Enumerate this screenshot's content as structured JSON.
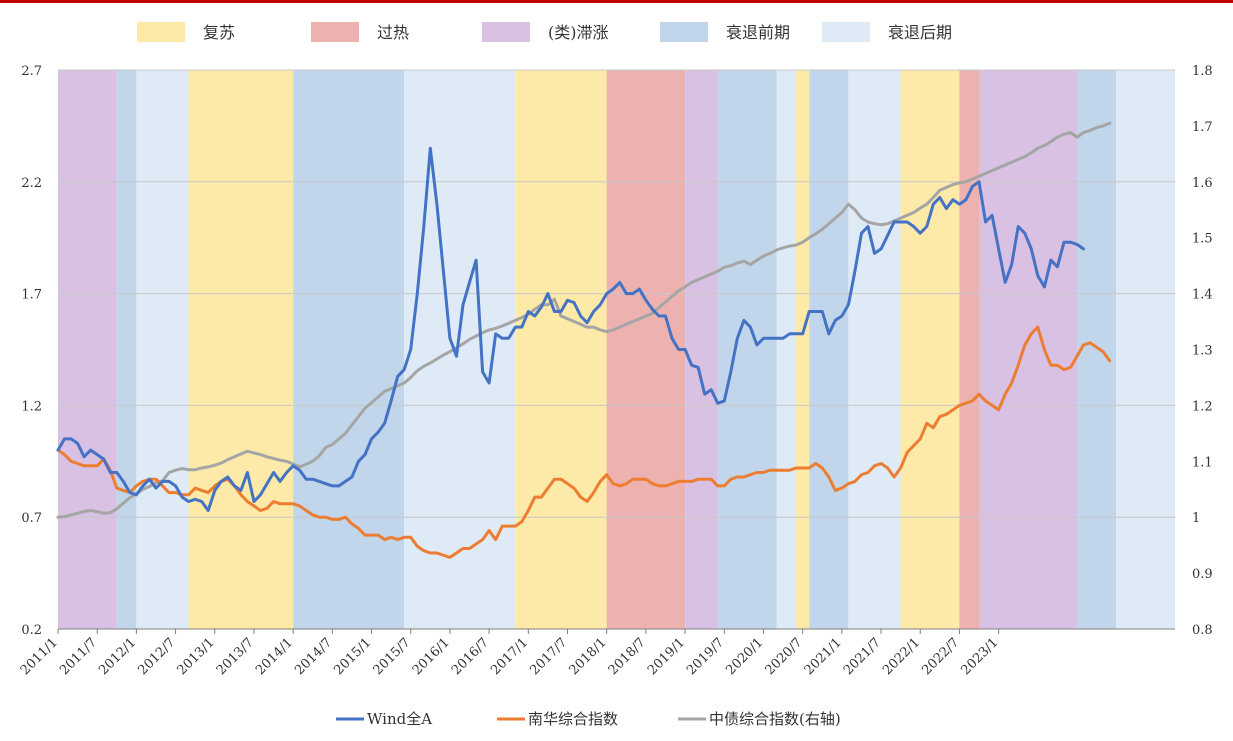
{
  "chart_data": {
    "type": "line",
    "phase_legend": [
      {
        "key": "recovery",
        "label": "复苏",
        "color": "#fde9a8"
      },
      {
        "key": "overheat",
        "label": "过热",
        "color": "#edb2b0"
      },
      {
        "key": "stagflation",
        "label": "(类)滞涨",
        "color": "#d9c1e3"
      },
      {
        "key": "early_recession",
        "label": "衰退前期",
        "color": "#c1d6ea"
      },
      {
        "key": "late_recession",
        "label": "衰退后期",
        "color": "#deebf7"
      }
    ],
    "phases": [
      {
        "phase": "stagflation",
        "start": "2011-01",
        "end": "2011-10"
      },
      {
        "phase": "early_recession",
        "start": "2011-10",
        "end": "2012-01"
      },
      {
        "phase": "late_recession",
        "start": "2012-01",
        "end": "2012-09"
      },
      {
        "phase": "recovery",
        "start": "2012-09",
        "end": "2014-01"
      },
      {
        "phase": "early_recession",
        "start": "2014-01",
        "end": "2015-06"
      },
      {
        "phase": "late_recession",
        "start": "2015-06",
        "end": "2016-11"
      },
      {
        "phase": "recovery",
        "start": "2016-11",
        "end": "2018-01"
      },
      {
        "phase": "overheat",
        "start": "2018-01",
        "end": "2019-01"
      },
      {
        "phase": "stagflation",
        "start": "2019-01",
        "end": "2019-06"
      },
      {
        "phase": "early_recession",
        "start": "2019-06",
        "end": "2020-03"
      },
      {
        "phase": "late_recession",
        "start": "2020-03",
        "end": "2020-06"
      },
      {
        "phase": "recovery",
        "start": "2020-06",
        "end": "2020-08"
      },
      {
        "phase": "early_recession",
        "start": "2020-08",
        "end": "2021-02"
      },
      {
        "phase": "late_recession",
        "start": "2021-02",
        "end": "2021-10"
      },
      {
        "phase": "recovery",
        "start": "2021-10",
        "end": "2022-07"
      },
      {
        "phase": "overheat",
        "start": "2022-07",
        "end": "2022-10"
      },
      {
        "phase": "stagflation",
        "start": "2022-10",
        "end": "2024-01"
      },
      {
        "phase": "early_recession",
        "start": "2024-01",
        "end": "2024-07"
      },
      {
        "phase": "late_recession",
        "start": "2024-07",
        "end": "2025-04"
      }
    ],
    "x_ticks": [
      "2011/1",
      "2011/7",
      "2012/1",
      "2012/7",
      "2013/1",
      "2013/7",
      "2014/1",
      "2014/7",
      "2015/1",
      "2015/7",
      "2016/1",
      "2016/7",
      "2017/1",
      "2017/7",
      "2018/1",
      "2018/7",
      "2019/1",
      "2019/7",
      "2020/1",
      "2020/7",
      "2021/1",
      "2021/7",
      "2022/1",
      "2022/7",
      "2023/1"
    ],
    "x_range": [
      "2011-01",
      "2025-04"
    ],
    "y_left": {
      "min": 0.2,
      "max": 2.7,
      "ticks": [
        "0.2",
        "0.7",
        "1.2",
        "1.7",
        "2.2",
        "2.7"
      ]
    },
    "y_right": {
      "min": 0.8,
      "max": 1.8,
      "ticks": [
        "0.8",
        "0.9",
        "1",
        "1.1",
        "1.2",
        "1.3",
        "1.4",
        "1.5",
        "1.6",
        "1.7",
        "1.8"
      ]
    },
    "series": [
      {
        "name": "Wind全A",
        "color": "#4472c4",
        "axis": "left",
        "start": "2011-01",
        "values": [
          1.0,
          1.05,
          1.05,
          1.03,
          0.97,
          1.0,
          0.98,
          0.96,
          0.9,
          0.9,
          0.86,
          0.81,
          0.8,
          0.84,
          0.87,
          0.83,
          0.86,
          0.86,
          0.84,
          0.79,
          0.77,
          0.78,
          0.77,
          0.73,
          0.82,
          0.86,
          0.88,
          0.84,
          0.82,
          0.9,
          0.77,
          0.8,
          0.85,
          0.9,
          0.86,
          0.9,
          0.93,
          0.91,
          0.87,
          0.87,
          0.86,
          0.85,
          0.84,
          0.84,
          0.86,
          0.88,
          0.95,
          0.98,
          1.05,
          1.08,
          1.12,
          1.22,
          1.33,
          1.36,
          1.45,
          1.7,
          2.0,
          2.35,
          2.1,
          1.8,
          1.5,
          1.42,
          1.65,
          1.75,
          1.85,
          1.35,
          1.3,
          1.52,
          1.5,
          1.5,
          1.55,
          1.55,
          1.62,
          1.6,
          1.64,
          1.7,
          1.62,
          1.62,
          1.67,
          1.66,
          1.6,
          1.57,
          1.62,
          1.65,
          1.7,
          1.72,
          1.75,
          1.7,
          1.7,
          1.72,
          1.67,
          1.63,
          1.6,
          1.6,
          1.5,
          1.45,
          1.45,
          1.38,
          1.37,
          1.25,
          1.27,
          1.21,
          1.22,
          1.35,
          1.5,
          1.58,
          1.55,
          1.47,
          1.5,
          1.5,
          1.5,
          1.5,
          1.52,
          1.52,
          1.52,
          1.62,
          1.62,
          1.62,
          1.52,
          1.58,
          1.6,
          1.65,
          1.8,
          1.97,
          2.0,
          1.88,
          1.9,
          1.96,
          2.02,
          2.02,
          2.02,
          2.0,
          1.97,
          2.0,
          2.1,
          2.13,
          2.08,
          2.12,
          2.1,
          2.12,
          2.18,
          2.2,
          2.02,
          2.05,
          1.9,
          1.75,
          1.83,
          2.0,
          1.97,
          1.9,
          1.78,
          1.73,
          1.85,
          1.82,
          1.93,
          1.93,
          1.92,
          1.9
        ]
      },
      {
        "name": "南华综合指数",
        "color": "#ed7d31",
        "axis": "left",
        "start": "2011-01",
        "values": [
          1.0,
          0.98,
          0.95,
          0.94,
          0.93,
          0.93,
          0.93,
          0.96,
          0.91,
          0.83,
          0.82,
          0.81,
          0.84,
          0.86,
          0.87,
          0.87,
          0.84,
          0.81,
          0.81,
          0.8,
          0.8,
          0.83,
          0.82,
          0.81,
          0.84,
          0.86,
          0.87,
          0.84,
          0.8,
          0.77,
          0.75,
          0.73,
          0.74,
          0.77,
          0.76,
          0.76,
          0.76,
          0.75,
          0.73,
          0.71,
          0.7,
          0.7,
          0.69,
          0.69,
          0.7,
          0.67,
          0.65,
          0.62,
          0.62,
          0.62,
          0.6,
          0.61,
          0.6,
          0.61,
          0.61,
          0.57,
          0.55,
          0.54,
          0.54,
          0.53,
          0.52,
          0.54,
          0.56,
          0.56,
          0.58,
          0.6,
          0.64,
          0.6,
          0.66,
          0.66,
          0.66,
          0.68,
          0.73,
          0.79,
          0.79,
          0.83,
          0.87,
          0.87,
          0.85,
          0.83,
          0.79,
          0.77,
          0.81,
          0.86,
          0.89,
          0.85,
          0.84,
          0.85,
          0.87,
          0.87,
          0.87,
          0.85,
          0.84,
          0.84,
          0.85,
          0.86,
          0.86,
          0.86,
          0.87,
          0.87,
          0.87,
          0.84,
          0.84,
          0.87,
          0.88,
          0.88,
          0.89,
          0.9,
          0.9,
          0.91,
          0.91,
          0.91,
          0.91,
          0.92,
          0.92,
          0.92,
          0.94,
          0.92,
          0.88,
          0.82,
          0.83,
          0.85,
          0.86,
          0.89,
          0.9,
          0.93,
          0.94,
          0.92,
          0.88,
          0.92,
          0.99,
          1.02,
          1.05,
          1.12,
          1.1,
          1.15,
          1.16,
          1.18,
          1.2,
          1.21,
          1.22,
          1.25,
          1.22,
          1.2,
          1.18,
          1.25,
          1.3,
          1.38,
          1.47,
          1.52,
          1.55,
          1.45,
          1.38,
          1.38,
          1.36,
          1.37,
          1.42,
          1.47,
          1.48,
          1.46,
          1.44,
          1.4
        ]
      },
      {
        "name": "中债综合指数(右轴)",
        "color": "#a5a5a5",
        "axis": "right",
        "start": "2011-01",
        "values": [
          1.0,
          1.001,
          1.004,
          1.007,
          1.01,
          1.012,
          1.01,
          1.007,
          1.008,
          1.015,
          1.025,
          1.035,
          1.042,
          1.05,
          1.055,
          1.062,
          1.065,
          1.08,
          1.084,
          1.087,
          1.085,
          1.085,
          1.088,
          1.09,
          1.093,
          1.097,
          1.103,
          1.108,
          1.113,
          1.118,
          1.115,
          1.112,
          1.108,
          1.105,
          1.102,
          1.1,
          1.095,
          1.09,
          1.095,
          1.1,
          1.11,
          1.125,
          1.13,
          1.14,
          1.15,
          1.165,
          1.18,
          1.195,
          1.205,
          1.215,
          1.225,
          1.23,
          1.235,
          1.24,
          1.25,
          1.262,
          1.27,
          1.276,
          1.283,
          1.29,
          1.296,
          1.303,
          1.31,
          1.318,
          1.324,
          1.33,
          1.335,
          1.338,
          1.342,
          1.347,
          1.352,
          1.357,
          1.363,
          1.372,
          1.38,
          1.38,
          1.39,
          1.36,
          1.355,
          1.35,
          1.345,
          1.34,
          1.34,
          1.335,
          1.332,
          1.335,
          1.34,
          1.345,
          1.35,
          1.355,
          1.36,
          1.365,
          1.375,
          1.385,
          1.395,
          1.405,
          1.412,
          1.42,
          1.425,
          1.43,
          1.435,
          1.44,
          1.447,
          1.45,
          1.455,
          1.458,
          1.452,
          1.46,
          1.467,
          1.472,
          1.478,
          1.482,
          1.485,
          1.487,
          1.492,
          1.5,
          1.507,
          1.515,
          1.525,
          1.535,
          1.545,
          1.56,
          1.55,
          1.535,
          1.528,
          1.525,
          1.523,
          1.525,
          1.53,
          1.535,
          1.54,
          1.545,
          1.553,
          1.56,
          1.572,
          1.585,
          1.59,
          1.595,
          1.598,
          1.6,
          1.605,
          1.61,
          1.615,
          1.62,
          1.625,
          1.63,
          1.635,
          1.64,
          1.645,
          1.652,
          1.66,
          1.665,
          1.672,
          1.68,
          1.685,
          1.688,
          1.68,
          1.688,
          1.692,
          1.697,
          1.7,
          1.705
        ]
      }
    ]
  }
}
